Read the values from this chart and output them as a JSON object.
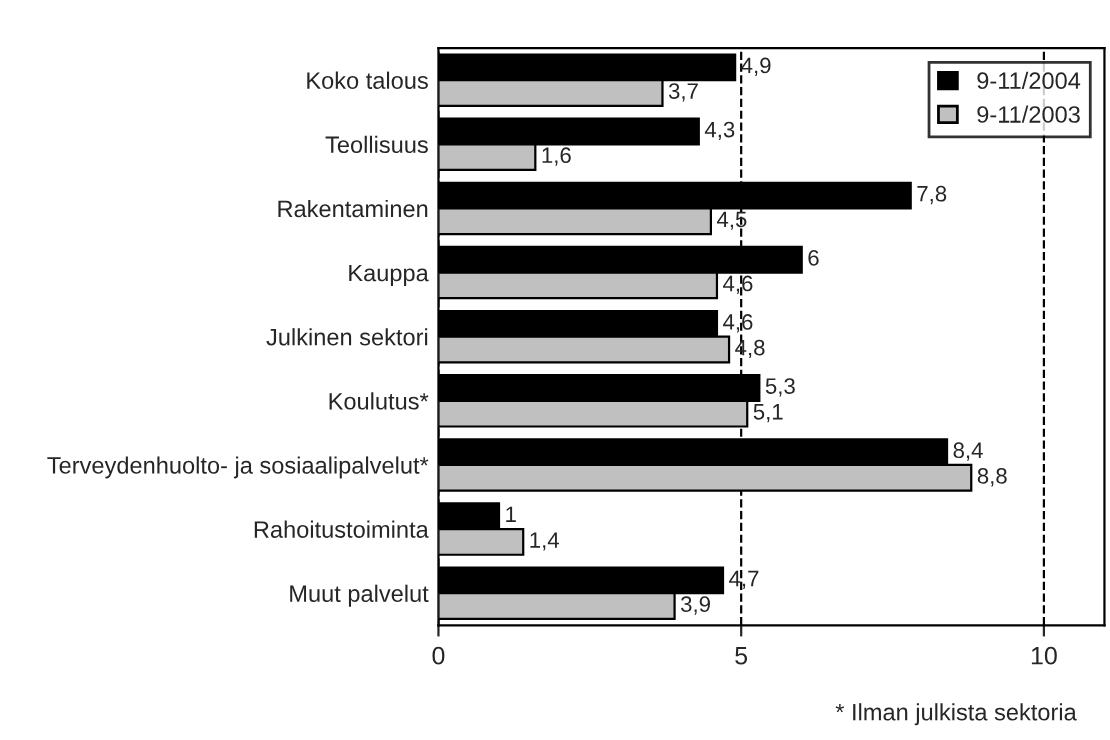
{
  "chart_data": {
    "type": "bar",
    "orientation": "horizontal",
    "categories": [
      "Koko talous",
      "Teollisuus",
      "Rakentaminen",
      "Kauppa",
      "Julkinen sektori",
      "Koulutus*",
      "Terveydenhuolto- ja sosiaalipalvelut*",
      "Rahoitustoiminta",
      "Muut palvelut"
    ],
    "series": [
      {
        "name": "9-11/2004",
        "color": "#000000",
        "values": [
          4.9,
          4.3,
          7.8,
          6,
          4.6,
          5.3,
          8.4,
          1,
          4.7
        ],
        "value_labels": [
          "4,9",
          "4,3",
          "7,8",
          "6",
          "4,6",
          "5,3",
          "8,4",
          "1",
          "4,7"
        ]
      },
      {
        "name": "9-11/2003",
        "color": "#c0c0c0",
        "values": [
          3.7,
          1.6,
          4.5,
          4.6,
          4.8,
          5.1,
          8.8,
          1.4,
          3.9
        ],
        "value_labels": [
          "3,7",
          "1,6",
          "4,5",
          "4,6",
          "4,8",
          "5,1",
          "8,8",
          "1,4",
          "3,9"
        ]
      }
    ],
    "xlim": [
      0,
      11
    ],
    "xticks": [
      0,
      5,
      10
    ],
    "grid": "x",
    "legend": "top right",
    "annotations": [
      "* Ilman julkista sektoria"
    ]
  }
}
